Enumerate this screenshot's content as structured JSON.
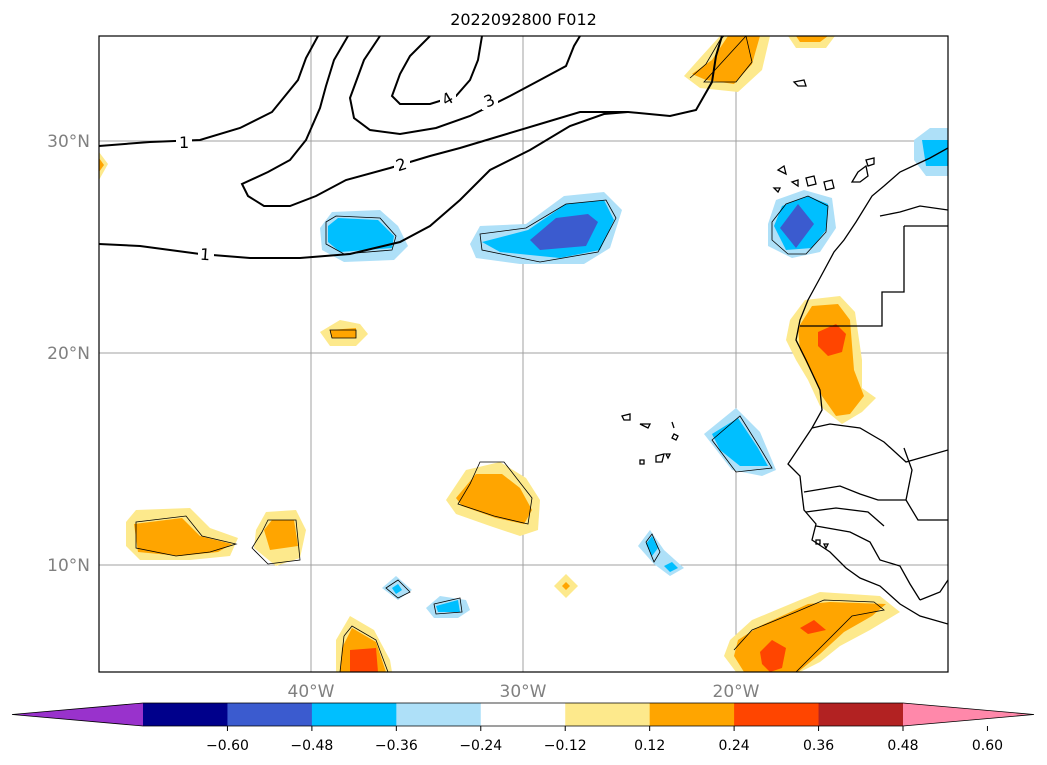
{
  "title": "2022092800 F012",
  "map": {
    "lat_labels": [
      "30°N",
      "20°N",
      "10°N"
    ],
    "lon_labels": [
      "40°W",
      "30°W",
      "20°W"
    ],
    "extent_deg": {
      "lon": [
        -50,
        -10
      ],
      "lat": [
        5,
        35
      ]
    },
    "gridlines": true,
    "contour_labels": [
      "1",
      "2",
      "3",
      "4",
      "1"
    ],
    "contour_color": "#000000"
  },
  "colorbar": {
    "ticks": [
      "−0.60",
      "−0.48",
      "−0.36",
      "−0.24",
      "−0.12",
      "0.12",
      "0.24",
      "0.36",
      "0.48",
      "0.60"
    ],
    "colors": [
      "#9932cc",
      "#00008b",
      "#3b5bcf",
      "#00bfff",
      "#aee0f8",
      "#ffffff",
      "#fde98c",
      "#ffa500",
      "#ff4500",
      "#b22222",
      "#ff88aa"
    ],
    "extend": "both"
  }
}
